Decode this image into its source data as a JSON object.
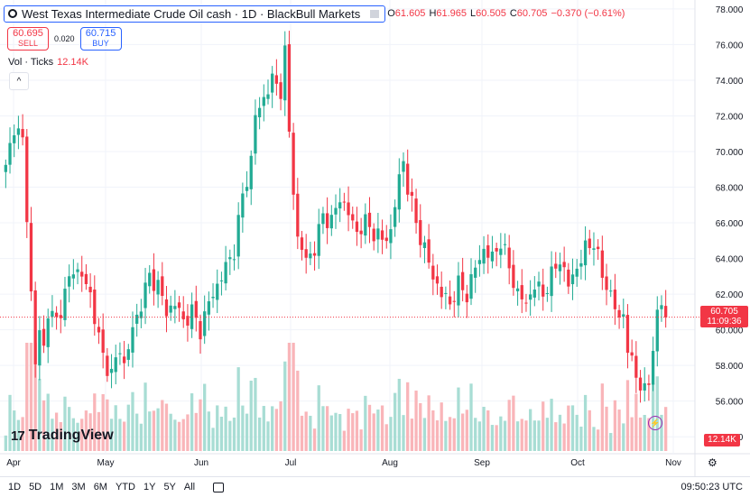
{
  "header": {
    "symbol": "West Texas Intermediate Crude Oil cash · 1D · BlackBull Markets",
    "open_label": "O",
    "open": "61.605",
    "high_label": "H",
    "high": "61.965",
    "low_label": "L",
    "low": "60.505",
    "close_label": "C",
    "close": "60.705",
    "change": "−0.370 (−0.61%)"
  },
  "trade": {
    "sell_price": "60.695",
    "sell_label": "SELL",
    "spread": "0.020",
    "buy_price": "60.715",
    "buy_label": "BUY"
  },
  "volume_legend": {
    "label": "Vol · Ticks",
    "value": "12.14K"
  },
  "logo": {
    "text": "TradingView"
  },
  "toolbar": {
    "timeframes": [
      "1D",
      "5D",
      "1M",
      "3M",
      "6M",
      "YTD",
      "1Y",
      "5Y",
      "All"
    ],
    "clock": "09:50:23 UTC"
  },
  "colors": {
    "up": "#22ab94",
    "down": "#f23645",
    "vol_up": "#a8ddd4",
    "vol_down": "#f9b5b9"
  },
  "chart_data": {
    "type": "candlestick",
    "y_axis_ticks": [
      "78.000",
      "76.000",
      "74.000",
      "72.000",
      "70.000",
      "68.000",
      "66.000",
      "64.000",
      "62.000",
      "60.000",
      "58.000",
      "56.000",
      "54.000"
    ],
    "ylim": [
      53.2,
      78.4
    ],
    "x_axis_labels": [
      "Apr",
      "May",
      "Jun",
      "Jul",
      "Aug",
      "Sep",
      "Oct",
      "Nov"
    ],
    "last_price_label": "60.705",
    "countdown": "11:09:36",
    "volume_last_label": "12.14K",
    "anchors": [
      [
        69.0,
        0
      ],
      [
        71.5,
        2
      ],
      [
        70.5,
        4
      ],
      [
        66.5,
        5
      ],
      [
        62,
        6
      ],
      [
        58,
        7
      ],
      [
        60,
        8
      ],
      [
        59,
        9
      ],
      [
        61,
        10
      ],
      [
        60.5,
        12
      ],
      [
        62,
        14
      ],
      [
        63.5,
        16
      ],
      [
        63,
        18
      ],
      [
        62,
        20
      ],
      [
        59.5,
        22
      ],
      [
        58.5,
        23
      ],
      [
        57.5,
        25
      ],
      [
        59,
        27
      ],
      [
        58,
        28
      ],
      [
        60,
        30
      ],
      [
        61.5,
        32
      ],
      [
        63,
        34
      ],
      [
        62.5,
        36
      ],
      [
        61,
        38
      ],
      [
        61.5,
        40
      ],
      [
        60.5,
        42
      ],
      [
        61,
        44
      ],
      [
        60,
        46
      ],
      [
        61.5,
        48
      ],
      [
        62.5,
        50
      ],
      [
        63.5,
        52
      ],
      [
        64.5,
        54
      ],
      [
        67.5,
        56
      ],
      [
        69.5,
        58
      ],
      [
        72,
        59
      ],
      [
        73,
        61
      ],
      [
        74,
        63
      ],
      [
        73.5,
        65
      ],
      [
        75.5,
        66
      ],
      [
        71,
        67
      ],
      [
        68,
        68
      ],
      [
        65,
        69
      ],
      [
        64,
        71
      ],
      [
        64.5,
        73
      ],
      [
        66.5,
        75
      ],
      [
        66,
        77
      ],
      [
        67.5,
        79
      ],
      [
        66.5,
        81
      ],
      [
        65.5,
        83
      ],
      [
        66,
        85
      ],
      [
        65.5,
        87
      ],
      [
        65,
        89
      ],
      [
        65.5,
        91
      ],
      [
        68.5,
        93
      ],
      [
        69.5,
        94
      ],
      [
        68,
        95
      ],
      [
        66,
        97
      ],
      [
        64.5,
        99
      ],
      [
        63,
        101
      ],
      [
        62,
        103
      ],
      [
        61.5,
        105
      ],
      [
        62.5,
        107
      ],
      [
        62,
        109
      ],
      [
        63.5,
        111
      ],
      [
        64.5,
        113
      ],
      [
        64,
        115
      ],
      [
        65,
        117
      ],
      [
        63.5,
        119
      ],
      [
        62,
        121
      ],
      [
        61.5,
        123
      ],
      [
        62.5,
        125
      ],
      [
        62,
        127
      ],
      [
        63,
        129
      ],
      [
        64,
        131
      ],
      [
        62.5,
        133
      ],
      [
        63.5,
        135
      ],
      [
        64.5,
        137
      ],
      [
        65,
        139
      ],
      [
        63,
        141
      ],
      [
        62,
        143
      ],
      [
        60.5,
        145
      ],
      [
        61,
        146
      ],
      [
        59,
        147
      ],
      [
        58,
        148
      ],
      [
        57,
        150
      ],
      [
        56.5,
        151
      ],
      [
        57,
        152
      ],
      [
        59,
        153
      ],
      [
        61,
        154
      ],
      [
        61.5,
        155
      ],
      [
        60.7,
        156
      ]
    ],
    "candle_count": 157,
    "volume_range": [
      0,
      14
    ]
  }
}
